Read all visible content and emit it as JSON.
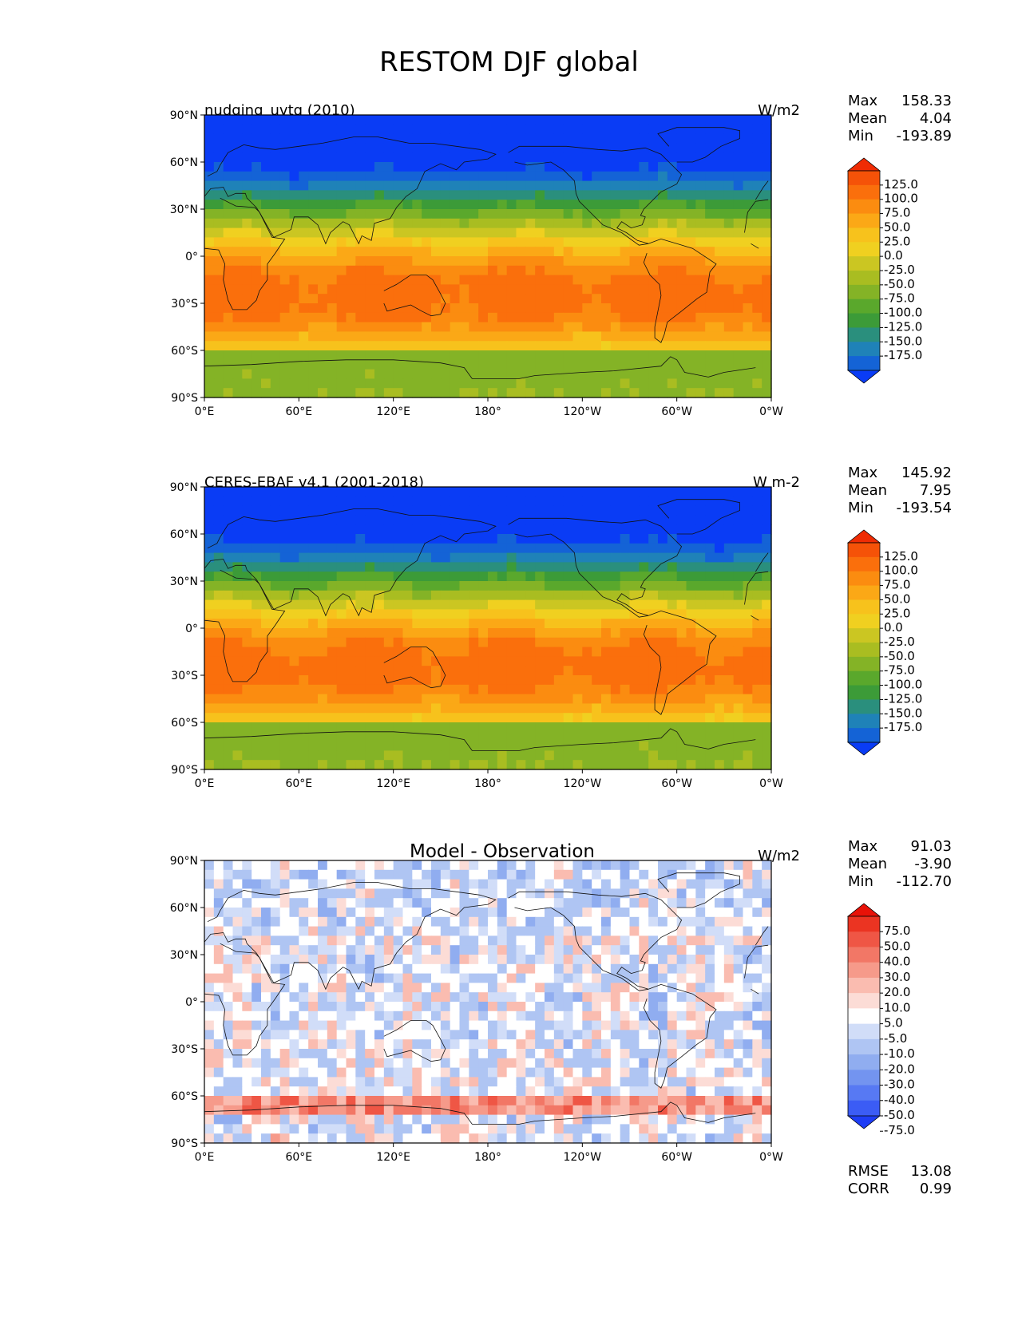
{
  "figure": {
    "title": "RESTOM DJF global"
  },
  "axes": {
    "y_ticks": [
      "90°N",
      "60°N",
      "30°N",
      "0°",
      "30°S",
      "60°S",
      "90°S"
    ],
    "x_ticks": [
      "0°E",
      "60°E",
      "120°E",
      "180°",
      "120°W",
      "60°W",
      "0°W"
    ]
  },
  "palettes": {
    "field": [
      "#0a3cf5",
      "#1463d6",
      "#1f82b8",
      "#2a8f7d",
      "#3c9b38",
      "#5aa82c",
      "#84b326",
      "#a9bd21",
      "#cbc622",
      "#f0d020",
      "#f7c21c",
      "#fba816",
      "#fb8c10",
      "#fa6f0c",
      "#f55208",
      "#ef2c04"
    ],
    "diff": [
      "#1e3df5",
      "#3b5cf5",
      "#5779f3",
      "#7394f0",
      "#90adf0",
      "#afc5f3",
      "#d1ddf8",
      "#ffffff",
      "#fcdcd6",
      "#fabcb0",
      "#f69a8a",
      "#f27766",
      "#ef5645",
      "#eb3422",
      "#e81208"
    ]
  },
  "panels": [
    {
      "id": "model",
      "title_left": "nudging_uvtq (2010)",
      "title_center": "",
      "units": "W/m2",
      "stats": {
        "max_label": "Max",
        "max": "158.33",
        "mean_label": "Mean",
        "mean": "4.04",
        "min_label": "Min",
        "min": "-193.89"
      },
      "colorbar": {
        "ticks": [
          "125.0",
          "100.0",
          "75.0",
          "50.0",
          "25.0",
          "0.0",
          "-25.0",
          "-50.0",
          "-75.0",
          "-100.0",
          "-125.0",
          "-150.0",
          "-175.0"
        ]
      }
    },
    {
      "id": "obs",
      "title_left": "CERES-EBAF v4.1 (2001-2018)",
      "title_center": "",
      "units": "W m-2",
      "stats": {
        "max_label": "Max",
        "max": "145.92",
        "mean_label": "Mean",
        "mean": "7.95",
        "min_label": "Min",
        "min": "-193.54"
      },
      "colorbar": {
        "ticks": [
          "125.0",
          "100.0",
          "75.0",
          "50.0",
          "25.0",
          "0.0",
          "-25.0",
          "-50.0",
          "-75.0",
          "-100.0",
          "-125.0",
          "-150.0",
          "-175.0"
        ]
      }
    },
    {
      "id": "diff",
      "title_left": "",
      "title_center": "Model - Observation",
      "units": "W/m2",
      "stats": {
        "max_label": "Max",
        "max": "91.03",
        "mean_label": "Mean",
        "mean": "-3.90",
        "min_label": "Min",
        "min": "-112.70"
      },
      "colorbar": {
        "ticks": [
          "75.0",
          "50.0",
          "40.0",
          "30.0",
          "20.0",
          "10.0",
          "5.0",
          "-5.0",
          "-10.0",
          "-20.0",
          "-30.0",
          "-40.0",
          "-50.0",
          "-75.0"
        ]
      },
      "error_stats": {
        "rmse_label": "RMSE",
        "rmse": "13.08",
        "corr_label": "CORR",
        "corr": "0.99"
      }
    }
  ],
  "chart_data": {
    "type": "heatmap",
    "title": "RESTOM DJF global",
    "projection": "equirectangular lon/lat",
    "xlim": [
      0,
      360
    ],
    "ylim": [
      -90,
      90
    ],
    "maps": [
      {
        "name": "nudging_uvtq (2010)",
        "units": "W/m2",
        "max": 158.33,
        "mean": 4.04,
        "min": -193.89,
        "levels": [
          -175,
          -150,
          -125,
          -100,
          -75,
          -50,
          -25,
          0,
          25,
          50,
          75,
          100,
          125
        ]
      },
      {
        "name": "CERES-EBAF v4.1 (2001-2018)",
        "units": "W m-2",
        "max": 145.92,
        "mean": 7.95,
        "min": -193.54,
        "levels": [
          -175,
          -150,
          -125,
          -100,
          -75,
          -50,
          -25,
          0,
          25,
          50,
          75,
          100,
          125
        ]
      },
      {
        "name": "Model - Observation",
        "units": "W/m2",
        "max": 91.03,
        "mean": -3.9,
        "min": -112.7,
        "rmse": 13.08,
        "corr": 0.99,
        "levels": [
          -75,
          -50,
          -40,
          -30,
          -20,
          -10,
          -5,
          5,
          10,
          20,
          30,
          40,
          50,
          75
        ]
      }
    ]
  }
}
